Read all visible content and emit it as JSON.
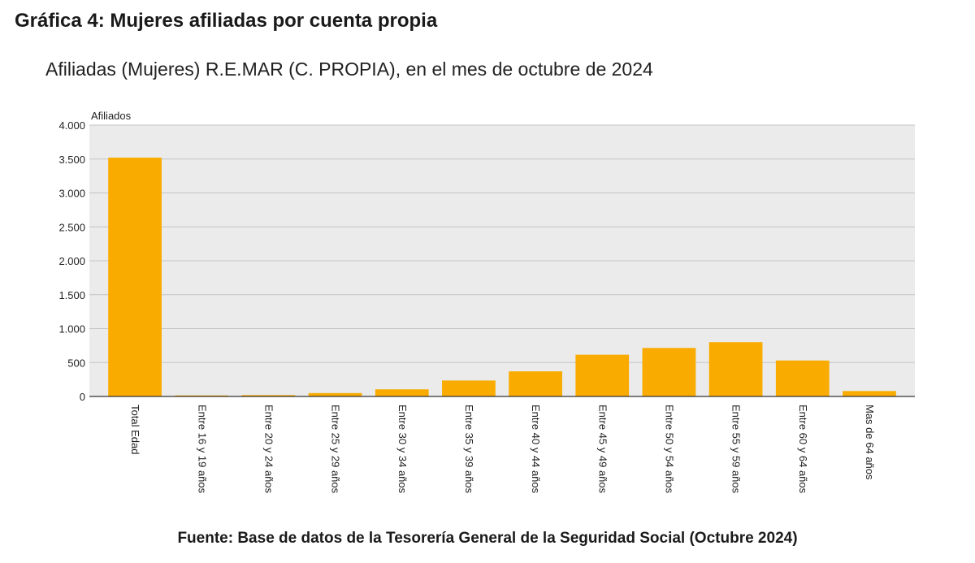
{
  "heading": "Gráfica 4: Mujeres afiliadas por cuenta propia",
  "source": "Fuente: Base de datos de la Tesorería General de la Seguridad Social (Octubre 2024)",
  "chart_data": {
    "type": "bar",
    "title": "Afiliadas (Mujeres) R.E.MAR (C. PROPIA), en el mes de octubre de 2024",
    "ylabel": "Afiliados",
    "xlabel": "",
    "ylim": [
      0,
      4000
    ],
    "yticks": [
      {
        "value": 0,
        "label": "0"
      },
      {
        "value": 500,
        "label": "500"
      },
      {
        "value": 1000,
        "label": "1.000"
      },
      {
        "value": 1500,
        "label": "1.500"
      },
      {
        "value": 2000,
        "label": "2.000"
      },
      {
        "value": 2500,
        "label": "2.500"
      },
      {
        "value": 3000,
        "label": "3.000"
      },
      {
        "value": 3500,
        "label": "3.500"
      },
      {
        "value": 4000,
        "label": "4.000"
      }
    ],
    "categories": [
      "Total Edad",
      "Entre 16 y 19 años",
      "Entre 20 y 24 años",
      "Entre 25 y 29 años",
      "Entre 30 y 34 años",
      "Entre 35 y 39 años",
      "Entre 40 y 44 años",
      "Entre 45 y 49 años",
      "Entre 50 y 54 años",
      "Entre 55 y 59 años",
      "Entre 60 y 64 años",
      "Mas de 64 años"
    ],
    "values": [
      3520,
      15,
      20,
      50,
      105,
      235,
      370,
      615,
      715,
      800,
      530,
      80
    ],
    "bar_color": "#f9ab00",
    "grid": true
  }
}
